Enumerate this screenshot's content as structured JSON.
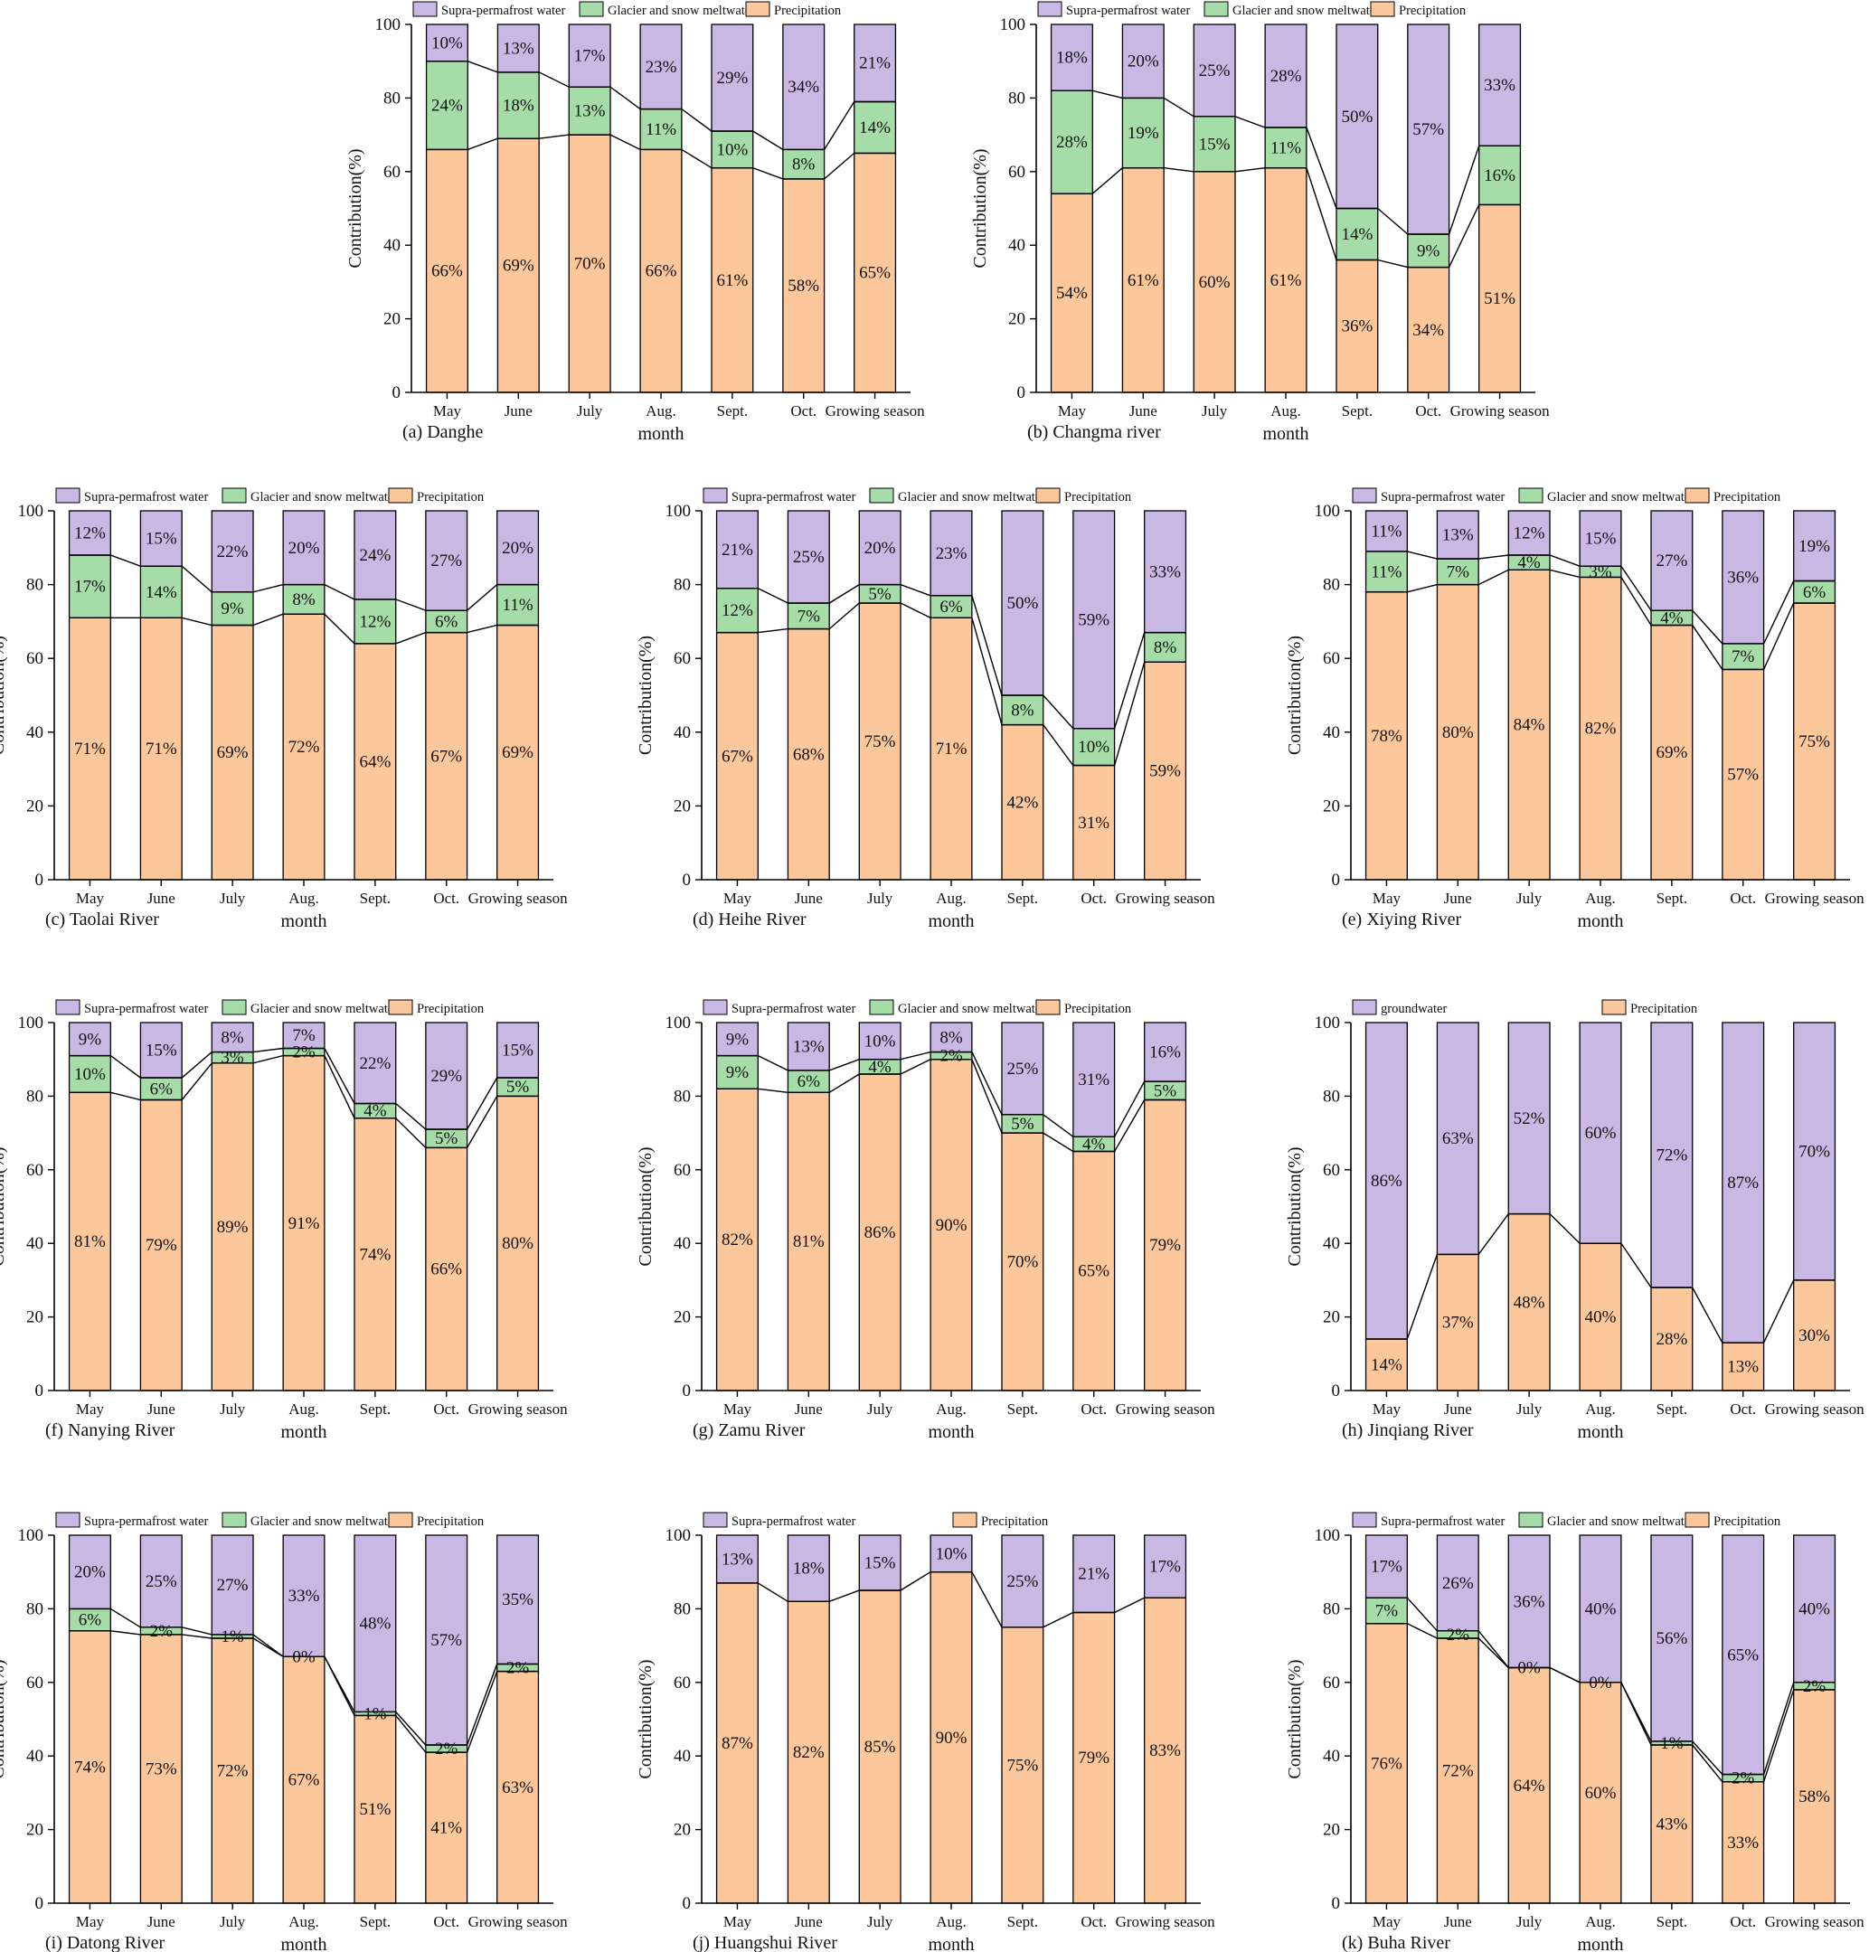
{
  "colors": {
    "supra": "#c8b8e3",
    "glacier": "#a5dca7",
    "precip": "#fdc79c",
    "axis": "#000000"
  },
  "figure": {
    "x_label": "month",
    "y_label": "Contribution(%)"
  },
  "chart_data": [
    {
      "title": "(a) Danghe",
      "type": "bar",
      "categories": [
        "May",
        "June",
        "July",
        "Aug.",
        "Sept.",
        "Oct.",
        "Growing season"
      ],
      "ylim": [
        0,
        100
      ],
      "yticks": [
        0,
        20,
        40,
        60,
        80,
        100
      ],
      "xlabel": "month",
      "ylabel": "Contribution(%)",
      "legend": [
        "Supra-permafrost water",
        "Glacier and snow meltwater",
        "Precipitation"
      ],
      "series": [
        {
          "name": "Precipitation",
          "values": [
            66,
            69,
            70,
            66,
            61,
            58,
            65
          ],
          "labels": [
            "66%",
            "69%",
            "70%",
            "66%",
            "61%",
            "58%",
            "65%"
          ]
        },
        {
          "name": "Glacier and snow meltwater",
          "values": [
            24,
            18,
            13,
            11,
            10,
            8,
            14
          ],
          "labels": [
            "24%",
            "18%",
            "13%",
            "11%",
            "10%",
            "8%",
            "14%"
          ]
        },
        {
          "name": "Supra-permafrost water",
          "values": [
            10,
            13,
            17,
            23,
            29,
            34,
            21
          ],
          "labels": [
            "10%",
            "13%",
            "17%",
            "23%",
            "29%",
            "34%",
            "21%"
          ]
        }
      ]
    },
    {
      "title": "(b) Changma river",
      "type": "bar",
      "categories": [
        "May",
        "June",
        "July",
        "Aug.",
        "Sept.",
        "Oct.",
        "Growing season"
      ],
      "ylim": [
        0,
        100
      ],
      "yticks": [
        0,
        20,
        40,
        60,
        80,
        100
      ],
      "xlabel": "month",
      "ylabel": "Contribution(%)",
      "legend": [
        "Supra-permafrost water",
        "Glacier and snow meltwater",
        "Precipitation"
      ],
      "series": [
        {
          "name": "Precipitation",
          "values": [
            54,
            61,
            60,
            61,
            36,
            34,
            51
          ],
          "labels": [
            "54%",
            "61%",
            "60%",
            "61%",
            "36%",
            "34%",
            "51%"
          ]
        },
        {
          "name": "Glacier and snow meltwater",
          "values": [
            28,
            19,
            15,
            11,
            14,
            9,
            16
          ],
          "labels": [
            "28%",
            "19%",
            "15%",
            "11%",
            "14%",
            "9%",
            "16%"
          ]
        },
        {
          "name": "Supra-permafrost water",
          "values": [
            18,
            20,
            25,
            28,
            50,
            57,
            33
          ],
          "labels": [
            "18%",
            "20%",
            "25%",
            "28%",
            "50%",
            "57%",
            "33%"
          ]
        }
      ]
    },
    {
      "title": "(c) Taolai  River",
      "type": "bar",
      "categories": [
        "May",
        "June",
        "July",
        "Aug.",
        "Sept.",
        "Oct.",
        "Growing season"
      ],
      "ylim": [
        0,
        100
      ],
      "yticks": [
        0,
        20,
        40,
        60,
        80,
        100
      ],
      "xlabel": "month",
      "ylabel": "Contribution(%)",
      "legend": [
        "Supra-permafrost water",
        "Glacier and snow meltwater",
        "Precipitation"
      ],
      "series": [
        {
          "name": "Precipitation",
          "values": [
            71,
            71,
            69,
            72,
            64,
            67,
            69
          ],
          "labels": [
            "71%",
            "71%",
            "69%",
            "72%",
            "64%",
            "67%",
            "69%"
          ]
        },
        {
          "name": "Glacier and snow meltwater",
          "values": [
            17,
            14,
            9,
            8,
            12,
            6,
            11
          ],
          "labels": [
            "17%",
            "14%",
            "9%",
            "8%",
            "12%",
            "6%",
            "11%"
          ]
        },
        {
          "name": "Supra-permafrost water",
          "values": [
            12,
            15,
            22,
            20,
            24,
            27,
            20
          ],
          "labels": [
            "12%",
            "15%",
            "22%",
            "20%",
            "24%",
            "27%",
            "20%"
          ]
        }
      ]
    },
    {
      "title": "(d) Heihe  River",
      "type": "bar",
      "categories": [
        "May",
        "June",
        "July",
        "Aug.",
        "Sept.",
        "Oct.",
        "Growing season"
      ],
      "ylim": [
        0,
        100
      ],
      "yticks": [
        0,
        20,
        40,
        60,
        80,
        100
      ],
      "xlabel": "month",
      "ylabel": "Contribution(%)",
      "legend": [
        "Supra-permafrost water",
        "Glacier and snow meltwater",
        "Precipitation"
      ],
      "series": [
        {
          "name": "Precipitation",
          "values": [
            67,
            68,
            75,
            71,
            42,
            31,
            59
          ],
          "labels": [
            "67%",
            "68%",
            "75%",
            "71%",
            "42%",
            "31%",
            "59%"
          ]
        },
        {
          "name": "Glacier and snow meltwater",
          "values": [
            12,
            7,
            5,
            6,
            8,
            10,
            8
          ],
          "labels": [
            "12%",
            "7%",
            "5%",
            "6%",
            "8%",
            "10%",
            "8%"
          ]
        },
        {
          "name": "Supra-permafrost water",
          "values": [
            21,
            25,
            20,
            23,
            50,
            59,
            33
          ],
          "labels": [
            "21%",
            "25%",
            "20%",
            "23%",
            "50%",
            "59%",
            "33%"
          ]
        }
      ]
    },
    {
      "title": "(e) Xiying  River",
      "type": "bar",
      "categories": [
        "May",
        "June",
        "July",
        "Aug.",
        "Sept.",
        "Oct.",
        "Growing season"
      ],
      "ylim": [
        0,
        100
      ],
      "yticks": [
        0,
        20,
        40,
        60,
        80,
        100
      ],
      "xlabel": "month",
      "ylabel": "Contribution(%)",
      "legend": [
        "Supra-permafrost water",
        "Glacier and snow meltwater",
        "Precipitation"
      ],
      "series": [
        {
          "name": "Precipitation",
          "values": [
            78,
            80,
            84,
            82,
            69,
            57,
            75
          ],
          "labels": [
            "78%",
            "80%",
            "84%",
            "82%",
            "69%",
            "57%",
            "75%"
          ]
        },
        {
          "name": "Glacier and snow meltwater",
          "values": [
            11,
            7,
            4,
            3,
            4,
            7,
            6
          ],
          "labels": [
            "11%",
            "7%",
            "4%",
            "3%",
            "4%",
            "7%",
            "6%"
          ]
        },
        {
          "name": "Supra-permafrost water",
          "values": [
            11,
            13,
            12,
            15,
            27,
            36,
            19
          ],
          "labels": [
            "11%",
            "13%",
            "12%",
            "15%",
            "27%",
            "36%",
            "19%"
          ]
        }
      ]
    },
    {
      "title": "(f) Nanying  River",
      "type": "bar",
      "categories": [
        "May",
        "June",
        "July",
        "Aug.",
        "Sept.",
        "Oct.",
        "Growing season"
      ],
      "ylim": [
        0,
        100
      ],
      "yticks": [
        0,
        20,
        40,
        60,
        80,
        100
      ],
      "xlabel": "month",
      "ylabel": "Contribution(%)",
      "legend": [
        "Supra-permafrost water",
        "Glacier and snow meltwater",
        "Precipitation"
      ],
      "series": [
        {
          "name": "Precipitation",
          "values": [
            81,
            79,
            89,
            91,
            74,
            66,
            80
          ],
          "labels": [
            "81%",
            "79%",
            "89%",
            "91%",
            "74%",
            "66%",
            "80%"
          ]
        },
        {
          "name": "Glacier and snow meltwater",
          "values": [
            10,
            6,
            3,
            2,
            4,
            5,
            5
          ],
          "labels": [
            "10%",
            "6%",
            "3%",
            "2%",
            "4%",
            "5%",
            "5%"
          ]
        },
        {
          "name": "Supra-permafrost water",
          "values": [
            9,
            15,
            8,
            7,
            22,
            29,
            15
          ],
          "labels": [
            "9%",
            "15%",
            "8%",
            "7%",
            "22%",
            "29%",
            "15%"
          ]
        }
      ]
    },
    {
      "title": "(g) Zamu River",
      "type": "bar",
      "categories": [
        "May",
        "June",
        "July",
        "Aug.",
        "Sept.",
        "Oct.",
        "Growing season"
      ],
      "ylim": [
        0,
        100
      ],
      "yticks": [
        0,
        20,
        40,
        60,
        80,
        100
      ],
      "xlabel": "month",
      "ylabel": "Contribution(%)",
      "legend": [
        "Supra-permafrost water",
        "Glacier and snow meltwater",
        "Precipitation"
      ],
      "series": [
        {
          "name": "Precipitation",
          "values": [
            82,
            81,
            86,
            90,
            70,
            65,
            79
          ],
          "labels": [
            "82%",
            "81%",
            "86%",
            "90%",
            "70%",
            "65%",
            "79%"
          ]
        },
        {
          "name": "Glacier and snow meltwater",
          "values": [
            9,
            6,
            4,
            2,
            5,
            4,
            5
          ],
          "labels": [
            "9%",
            "6%",
            "4%",
            "2%",
            "5%",
            "4%",
            "5%"
          ]
        },
        {
          "name": "Supra-permafrost water",
          "values": [
            9,
            13,
            10,
            8,
            25,
            31,
            16
          ],
          "labels": [
            "9%",
            "13%",
            "10%",
            "8%",
            "25%",
            "31%",
            "16%"
          ]
        }
      ]
    },
    {
      "title": "(h) Jinqiang River",
      "type": "bar",
      "categories": [
        "May",
        "June",
        "July",
        "Aug.",
        "Sept.",
        "Oct.",
        "Growing season"
      ],
      "ylim": [
        0,
        100
      ],
      "yticks": [
        0,
        20,
        40,
        60,
        80,
        100
      ],
      "xlabel": "month",
      "ylabel": "Contribution(%)",
      "legend": [
        "groundwater",
        "Precipitation"
      ],
      "series": [
        {
          "name": "Precipitation",
          "values": [
            14,
            37,
            48,
            40,
            28,
            13,
            30
          ],
          "labels": [
            "14%",
            "37%",
            "48%",
            "40%",
            "28%",
            "13%",
            "30%"
          ]
        },
        {
          "name": "groundwater",
          "values": [
            86,
            63,
            52,
            60,
            72,
            87,
            70
          ],
          "labels": [
            "86%",
            "63%",
            "52%",
            "60%",
            "72%",
            "87%",
            "70%"
          ]
        }
      ]
    },
    {
      "title": "(i) Datong  River",
      "type": "bar",
      "categories": [
        "May",
        "June",
        "July",
        "Aug.",
        "Sept.",
        "Oct.",
        "Growing season"
      ],
      "ylim": [
        0,
        100
      ],
      "yticks": [
        0,
        20,
        40,
        60,
        80,
        100
      ],
      "xlabel": "month",
      "ylabel": "Contribution(%)",
      "legend": [
        "Supra-permafrost water",
        "Glacier and snow meltwater",
        "Precipitation"
      ],
      "series": [
        {
          "name": "Precipitation",
          "values": [
            74,
            73,
            72,
            67,
            51,
            41,
            63
          ],
          "labels": [
            "74%",
            "73%",
            "72%",
            "67%",
            "51%",
            "41%",
            "63%"
          ]
        },
        {
          "name": "Glacier and snow meltwater",
          "values": [
            6,
            2,
            1,
            0,
            1,
            2,
            2
          ],
          "labels": [
            "6%",
            "2%",
            "1%",
            "0%",
            "1%",
            "2%",
            "2%"
          ]
        },
        {
          "name": "Supra-permafrost water",
          "values": [
            20,
            25,
            27,
            33,
            48,
            57,
            35
          ],
          "labels": [
            "20%",
            "25%",
            "27%",
            "33%",
            "48%",
            "57%",
            "35%"
          ]
        }
      ]
    },
    {
      "title": "(j) Huangshui  River",
      "type": "bar",
      "categories": [
        "May",
        "June",
        "July",
        "Aug.",
        "Sept.",
        "Oct.",
        "Growing season"
      ],
      "ylim": [
        0,
        100
      ],
      "yticks": [
        0,
        20,
        40,
        60,
        80,
        100
      ],
      "xlabel": "month",
      "ylabel": "Contribution(%)",
      "legend": [
        "Supra-permafrost water",
        "Precipitation"
      ],
      "series": [
        {
          "name": "Precipitation",
          "values": [
            87,
            82,
            85,
            90,
            75,
            79,
            83
          ],
          "labels": [
            "87%",
            "82%",
            "85%",
            "90%",
            "75%",
            "79%",
            "83%"
          ]
        },
        {
          "name": "Supra-permafrost water",
          "values": [
            13,
            18,
            15,
            10,
            25,
            21,
            17
          ],
          "labels": [
            "13%",
            "18%",
            "15%",
            "10%",
            "25%",
            "21%",
            "17%"
          ]
        }
      ]
    },
    {
      "title": "(k) Buha River",
      "type": "bar",
      "categories": [
        "May",
        "June",
        "July",
        "Aug.",
        "Sept.",
        "Oct.",
        "Growing season"
      ],
      "ylim": [
        0,
        100
      ],
      "yticks": [
        0,
        20,
        40,
        60,
        80,
        100
      ],
      "xlabel": "month",
      "ylabel": "Contribution(%)",
      "legend": [
        "Supra-permafrost water",
        "Glacier and snow meltwater",
        "Precipitation"
      ],
      "series": [
        {
          "name": "Precipitation",
          "values": [
            76,
            72,
            64,
            60,
            43,
            33,
            58
          ],
          "labels": [
            "76%",
            "72%",
            "64%",
            "60%",
            "43%",
            "33%",
            "58%"
          ]
        },
        {
          "name": "Glacier and snow meltwater",
          "values": [
            7,
            2,
            0,
            0,
            1,
            2,
            2
          ],
          "labels": [
            "7%",
            "2%",
            "0%",
            "0%",
            "1%",
            "2%",
            "2%"
          ]
        },
        {
          "name": "Supra-permafrost water",
          "values": [
            17,
            26,
            36,
            40,
            56,
            65,
            40
          ],
          "labels": [
            "17%",
            "26%",
            "36%",
            "40%",
            "56%",
            "65%",
            "40%"
          ]
        }
      ]
    }
  ]
}
